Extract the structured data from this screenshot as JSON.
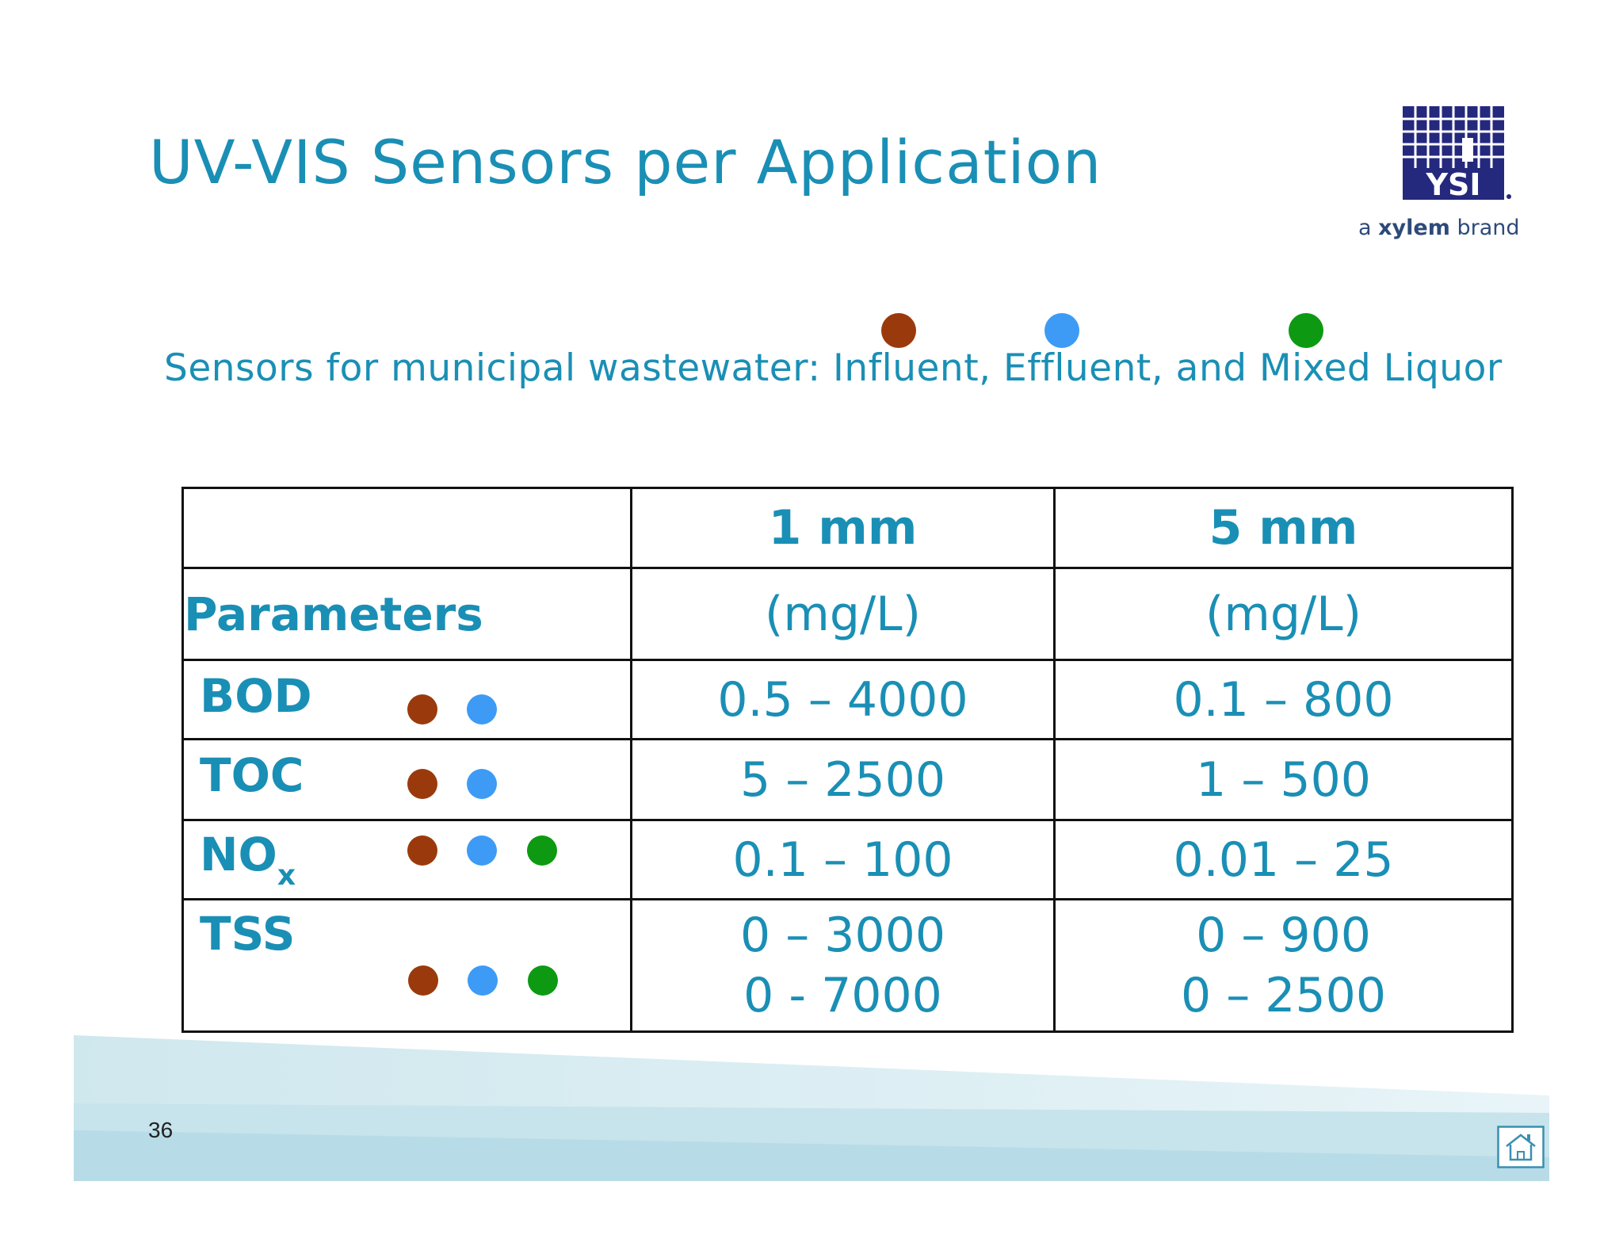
{
  "slide": {
    "title": "UV-VIS Sensors per Application",
    "page_number": "36"
  },
  "logo": {
    "name": "YSI",
    "tagline_prefix": "a",
    "tagline_brand": "xylem",
    "tagline_suffix": "brand"
  },
  "subtitle": "Sensors for municipal wastewater: Influent, Effluent, and Mixed Liquor",
  "legend": [
    {
      "applies_to": "Influent",
      "color": "#9a3a0c"
    },
    {
      "applies_to": "Effluent",
      "color": "#3d9bf5"
    },
    {
      "applies_to": "Mixed Liquor",
      "color": "#0d9a12"
    }
  ],
  "table": {
    "header": {
      "col1": "1 mm",
      "col2": "5 mm"
    },
    "units_row": {
      "label": "Parameters",
      "col1": "(mg/L)",
      "col2": "(mg/L)"
    },
    "rows": [
      {
        "param": "BOD",
        "param_sub": "",
        "dots": [
          "influent",
          "effluent"
        ],
        "col1": [
          "0.5 – 4000"
        ],
        "col2": [
          "0.1 – 800"
        ]
      },
      {
        "param": "TOC",
        "param_sub": "",
        "dots": [
          "influent",
          "effluent"
        ],
        "col1": [
          "5 – 2500"
        ],
        "col2": [
          "1 – 500"
        ]
      },
      {
        "param": "NO",
        "param_sub": "x",
        "dots": [
          "influent",
          "effluent",
          "mixed liquor"
        ],
        "col1": [
          "0.1 – 100"
        ],
        "col2": [
          "0.01 – 25"
        ]
      },
      {
        "param": "TSS",
        "param_sub": "",
        "dots": [
          "influent",
          "effluent",
          "mixed liquor"
        ],
        "col1": [
          "0 – 3000",
          "0 - 7000"
        ],
        "col2": [
          "0 – 900",
          "0 – 2500"
        ]
      }
    ]
  },
  "icons": {
    "home": "home-icon",
    "logo": "ysi-logo-icon"
  },
  "colors": {
    "accent": "#1a8fb5",
    "influent": "#9a3a0c",
    "effluent": "#3d9bf5",
    "mixed_liquor": "#0d9a12",
    "logo_blue": "#24297d"
  }
}
